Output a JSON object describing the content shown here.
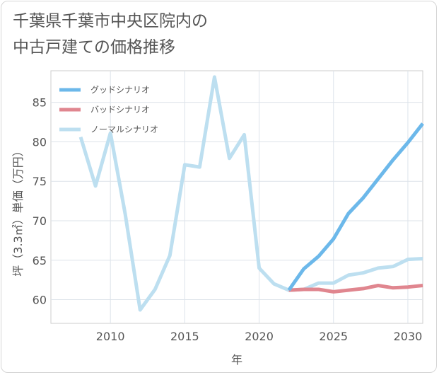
{
  "title": {
    "line1": "千葉県千葉市中央区院内の",
    "line2": "中古戸建ての価格推移"
  },
  "chart_data": {
    "type": "line",
    "title": "千葉県千葉市中央区院内の中古戸建ての価格推移",
    "xlabel": "年",
    "ylabel": "坪（3.3㎡）単価（万円）",
    "xlim": [
      2006,
      2031
    ],
    "ylim": [
      57,
      89
    ],
    "xticks": [
      2010,
      2015,
      2020,
      2025,
      2030
    ],
    "yticks": [
      60,
      65,
      70,
      75,
      80,
      85
    ],
    "grid": true,
    "legend_position": "top-left",
    "series": [
      {
        "name": "グッドシナリオ",
        "color": "#6cb8ea",
        "x": [
          2022,
          2023,
          2024,
          2025,
          2026,
          2027,
          2028,
          2029,
          2030,
          2031
        ],
        "y": [
          61.2,
          63.9,
          65.5,
          67.7,
          70.9,
          72.9,
          75.3,
          77.7,
          79.9,
          82.3
        ]
      },
      {
        "name": "バッドシナリオ",
        "color": "#e0868f",
        "x": [
          2022,
          2023,
          2024,
          2025,
          2026,
          2027,
          2028,
          2029,
          2030,
          2031
        ],
        "y": [
          61.2,
          61.3,
          61.3,
          61.0,
          61.2,
          61.4,
          61.8,
          61.5,
          61.6,
          61.8
        ]
      },
      {
        "name": "ノーマルシナリオ",
        "color": "#bddff0",
        "x": [
          2008,
          2009,
          2010,
          2011,
          2012,
          2013,
          2014,
          2015,
          2016,
          2017,
          2018,
          2019,
          2020,
          2021,
          2022,
          2023,
          2024,
          2025,
          2026,
          2027,
          2028,
          2029,
          2030,
          2031
        ],
        "y": [
          80.6,
          74.4,
          81.1,
          70.8,
          58.7,
          61.3,
          65.6,
          77.1,
          76.8,
          88.2,
          77.9,
          80.9,
          64.0,
          62.0,
          61.2,
          61.3,
          62.1,
          62.1,
          63.1,
          63.4,
          64.0,
          64.2,
          65.1,
          65.2
        ]
      }
    ]
  }
}
